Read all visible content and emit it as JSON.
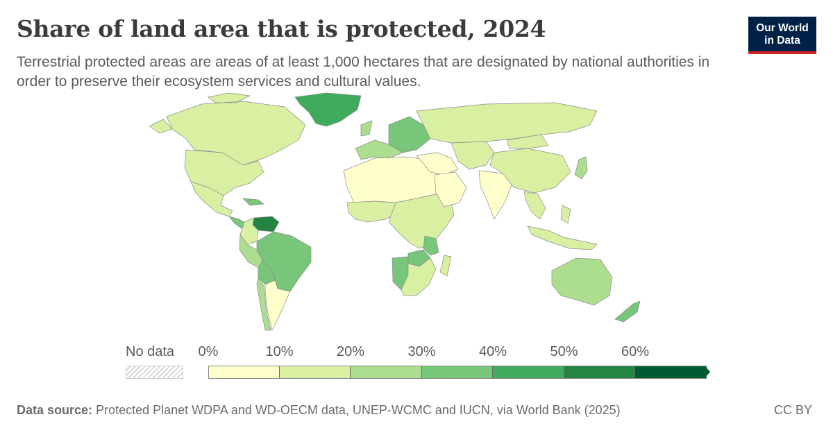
{
  "header": {
    "title": "Share of land area that is protected, 2024",
    "subtitle": "Terrestrial protected areas are areas of at least 1,000 hectares that are designated by national authorities in order to preserve their ecosystem services and cultural values."
  },
  "logo": {
    "line1": "Our World",
    "line2": "in Data",
    "bg_color": "#002147",
    "accent_color": "#ce261e"
  },
  "legend": {
    "no_data_label": "No data",
    "bins": [
      {
        "label": "0%",
        "color": "#ffffcc"
      },
      {
        "label": "10%",
        "color": "#d9f0a3"
      },
      {
        "label": "20%",
        "color": "#addd8e"
      },
      {
        "label": "30%",
        "color": "#78c679"
      },
      {
        "label": "40%",
        "color": "#41ab5d"
      },
      {
        "label": "50%",
        "color": "#238443"
      },
      {
        "label": "60%",
        "color": "#005a32"
      }
    ]
  },
  "map_data": {
    "value_unit": "%",
    "regions": [
      {
        "name": "Greenland",
        "value": 42
      },
      {
        "name": "Canada",
        "value": 14
      },
      {
        "name": "United States",
        "value": 13
      },
      {
        "name": "Mexico",
        "value": 15
      },
      {
        "name": "Central America",
        "value": 30
      },
      {
        "name": "Venezuela",
        "value": 56
      },
      {
        "name": "Colombia",
        "value": 16
      },
      {
        "name": "Brazil",
        "value": 30
      },
      {
        "name": "Peru",
        "value": 22
      },
      {
        "name": "Bolivia",
        "value": 31
      },
      {
        "name": "Chile",
        "value": 21
      },
      {
        "name": "Argentina",
        "value": 9
      },
      {
        "name": "North Africa",
        "value": 5
      },
      {
        "name": "West Africa",
        "value": 14
      },
      {
        "name": "Central Africa",
        "value": 18
      },
      {
        "name": "Zambia",
        "value": 38
      },
      {
        "name": "Tanzania",
        "value": 38
      },
      {
        "name": "Namibia",
        "value": 38
      },
      {
        "name": "Southern Africa",
        "value": 12
      },
      {
        "name": "Madagascar",
        "value": 11
      },
      {
        "name": "Europe West",
        "value": 26
      },
      {
        "name": "Europe East",
        "value": 32
      },
      {
        "name": "Russia",
        "value": 12
      },
      {
        "name": "Middle East",
        "value": 8
      },
      {
        "name": "Arabian Peninsula",
        "value": 4
      },
      {
        "name": "Central Asia",
        "value": 10
      },
      {
        "name": "India",
        "value": 7
      },
      {
        "name": "China",
        "value": 15
      },
      {
        "name": "Mongolia",
        "value": 18
      },
      {
        "name": "Southeast Asia",
        "value": 16
      },
      {
        "name": "Indonesia",
        "value": 12
      },
      {
        "name": "Japan",
        "value": 20
      },
      {
        "name": "Australia",
        "value": 21
      },
      {
        "name": "New Zealand",
        "value": 33
      }
    ]
  },
  "footer": {
    "source_label": "Data source:",
    "source_text": "Protected Planet WDPA and WD-OECM data, UNEP-WCMC and IUCN, via World Bank (2025)",
    "license": "CC BY"
  }
}
